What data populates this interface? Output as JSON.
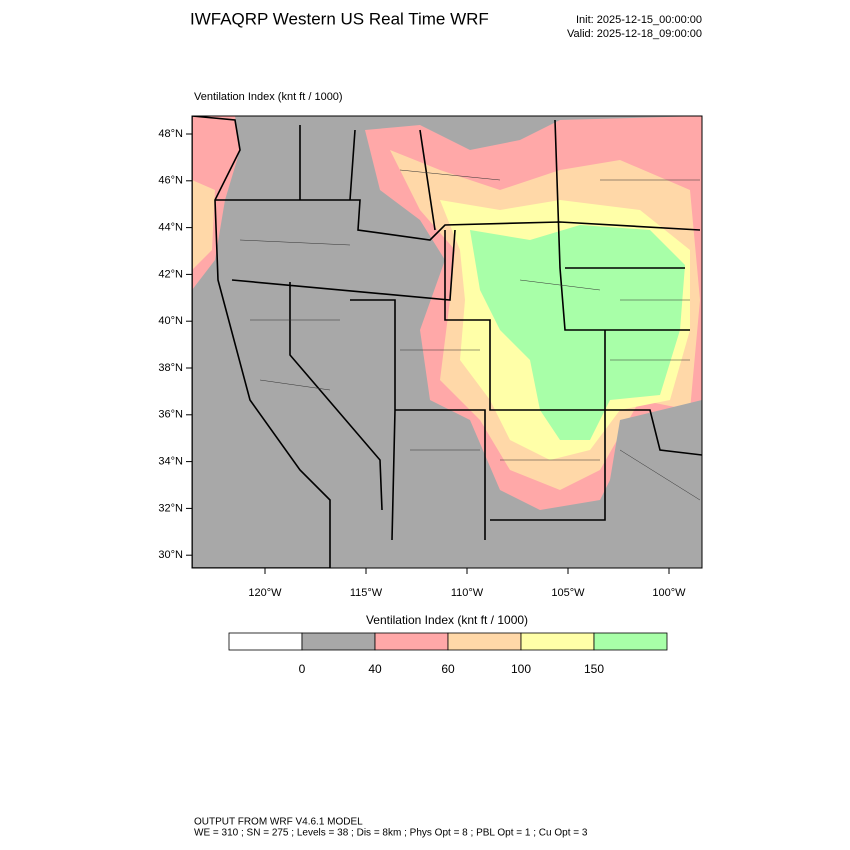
{
  "header": {
    "title": "IWFAQRP Western US Real Time WRF",
    "init": "Init: 2025-12-15_00:00:00",
    "valid": "Valid: 2025-12-18_09:00:00"
  },
  "map": {
    "subtitle": "Ventilation Index   (knt ft / 1000)",
    "lat_labels": [
      "48°N",
      "46°N",
      "44°N",
      "42°N",
      "40°N",
      "38°N",
      "36°N",
      "34°N",
      "32°N",
      "30°N"
    ],
    "lon_labels": [
      "120°W",
      "115°W",
      "110°W",
      "105°W",
      "100°W"
    ]
  },
  "colorbar": {
    "title": "Ventilation Index   (knt ft / 1000)",
    "colors": [
      "#ffffff",
      "#a8a8a8",
      "#ffa8a8",
      "#ffd8a8",
      "#ffffa8",
      "#a8ffa8"
    ],
    "levels": [
      0,
      40,
      60,
      100,
      150
    ]
  },
  "footer": {
    "line1": "OUTPUT FROM WRF V4.6.1 MODEL",
    "line2": "WE = 310 ; SN = 275 ; Levels = 38 ; Dis = 8km ; Phys Opt = 8 ; PBL Opt = 1 ; Cu Opt = 3"
  }
}
